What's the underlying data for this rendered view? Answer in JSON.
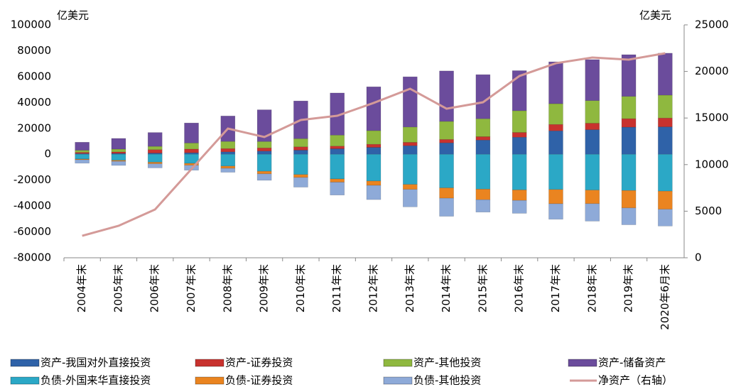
{
  "chart_data": {
    "type": "bar",
    "y_label": "亿美元",
    "y2_label": "亿美元",
    "categories": [
      "2004年末",
      "2005年末",
      "2006年末",
      "2007年末",
      "2008年末",
      "2009年末",
      "2010年末",
      "2011年末",
      "2012年末",
      "2013年末",
      "2014年末",
      "2015年末",
      "2016年末",
      "2017年末",
      "2018年末",
      "2019年末",
      "2020年6月末"
    ],
    "ylim": [
      -80000,
      100000
    ],
    "yticks": [
      -80000,
      -60000,
      -40000,
      -20000,
      0,
      20000,
      40000,
      60000,
      80000,
      100000
    ],
    "y2lim": [
      0,
      25000
    ],
    "y2ticks": [
      0,
      5000,
      10000,
      15000,
      20000,
      25000
    ],
    "grid": false,
    "series": [
      {
        "name": "资产-我国对外直接投资",
        "color": "#2f62a8",
        "values": [
          527,
          645,
          906,
          1160,
          1857,
          2458,
          3172,
          4248,
          5319,
          6605,
          8826,
          10959,
          13172,
          18090,
          18990,
          20945,
          21200
        ]
      },
      {
        "name": "资产-证券投资",
        "color": "#c8322e",
        "values": [
          920,
          1167,
          2652,
          2846,
          2525,
          2428,
          2571,
          2044,
          2406,
          2585,
          2625,
          2613,
          3670,
          4972,
          4980,
          6555,
          6800
        ]
      },
      {
        "name": "资产-其他投资",
        "color": "#8fb83f",
        "values": [
          1658,
          2164,
          2539,
          4683,
          5523,
          4952,
          6304,
          8495,
          10527,
          11867,
          13938,
          13889,
          16797,
          16018,
          17505,
          17225,
          17700
        ]
      },
      {
        "name": "资产-储备资产",
        "color": "#6b4c9c",
        "values": [
          6186,
          8257,
          10696,
          15473,
          19662,
          24532,
          29142,
          32558,
          33879,
          38804,
          38993,
          34061,
          30978,
          32359,
          31680,
          32229,
          32400
        ]
      },
      {
        "name": "负债-外国来华直接投资",
        "color": "#2ba8c6",
        "values": [
          -3690,
          -4715,
          -6144,
          -7037,
          -9155,
          -13148,
          -15696,
          -19069,
          -20680,
          -23312,
          -25991,
          -26963,
          -27551,
          -27257,
          -27700,
          -28000,
          -28500
        ]
      },
      {
        "name": "负债-证券投资",
        "color": "#ea8420",
        "values": [
          -566,
          -766,
          -1207,
          -1466,
          -1677,
          -2000,
          -2239,
          -2485,
          -3361,
          -3865,
          -7962,
          -8170,
          -8111,
          -10994,
          -10500,
          -13500,
          -14000
        ]
      },
      {
        "name": "负债-其他投资",
        "color": "#8eaad8",
        "values": [
          -2677,
          -3161,
          -3200,
          -3845,
          -3098,
          -5000,
          -7500,
          -10000,
          -11000,
          -13500,
          -14000,
          -9600,
          -10000,
          -12000,
          -13500,
          -13000,
          -13000
        ]
      },
      {
        "name": "净资产（右轴）",
        "color": "#d49a98",
        "type": "line",
        "axis": "y2",
        "values": [
          2360,
          3430,
          5180,
          9530,
          13870,
          12960,
          14790,
          15240,
          16620,
          18140,
          16000,
          16690,
          19510,
          20880,
          21490,
          21270,
          21950
        ]
      }
    ]
  }
}
